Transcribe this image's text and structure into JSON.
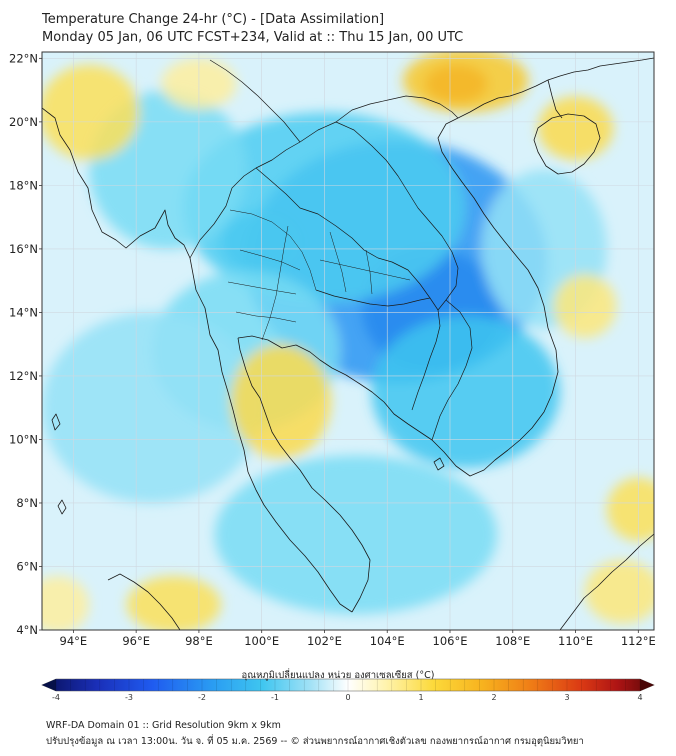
{
  "title": {
    "line1": "Temperature Change 24-hr (°C) - [Data Assimilation]",
    "line2": "Monday 05 Jan, 06 UTC FCST+234, Valid at :: Thu 15 Jan, 00 UTC"
  },
  "map": {
    "lon_range": [
      93.0,
      112.5
    ],
    "lat_range": [
      4.0,
      22.2
    ],
    "lat_ticks": [
      {
        "value": 22,
        "label": "22°N"
      },
      {
        "value": 20,
        "label": "20°N"
      },
      {
        "value": 18,
        "label": "18°N"
      },
      {
        "value": 16,
        "label": "16°N"
      },
      {
        "value": 14,
        "label": "14°N"
      },
      {
        "value": 12,
        "label": "12°N"
      },
      {
        "value": 10,
        "label": "10°N"
      },
      {
        "value": 8,
        "label": "8°N"
      },
      {
        "value": 6,
        "label": "6°N"
      },
      {
        "value": 4,
        "label": "4°N"
      }
    ],
    "lon_ticks": [
      {
        "value": 94,
        "label": "94°E"
      },
      {
        "value": 96,
        "label": "96°E"
      },
      {
        "value": 98,
        "label": "98°E"
      },
      {
        "value": 100,
        "label": "100°E"
      },
      {
        "value": 102,
        "label": "102°E"
      },
      {
        "value": 104,
        "label": "104°E"
      },
      {
        "value": 106,
        "label": "106°E"
      },
      {
        "value": 108,
        "label": "108°E"
      },
      {
        "value": 110,
        "label": "110°E"
      },
      {
        "value": 112,
        "label": "112°E"
      }
    ],
    "field_blobs": [
      {
        "lon": 105.4,
        "lat": 14.1,
        "rlon": 2.2,
        "rlat": 1.9,
        "value": -2.4
      },
      {
        "lon": 104.3,
        "lat": 15.6,
        "rlon": 4.8,
        "rlat": 3.8,
        "value": -1.3
      },
      {
        "lon": 100.0,
        "lat": 16.2,
        "rlon": 1.3,
        "rlat": 1.0,
        "value": -1.0
      },
      {
        "lon": 102.0,
        "lat": 17.3,
        "rlon": 4.5,
        "rlat": 3.0,
        "value": -0.7
      },
      {
        "lon": 106.5,
        "lat": 11.5,
        "rlon": 3.0,
        "rlat": 2.4,
        "value": -0.8
      },
      {
        "lon": 99.5,
        "lat": 12.8,
        "rlon": 3.0,
        "rlat": 2.5,
        "value": -0.4
      },
      {
        "lon": 103.0,
        "lat": 7.0,
        "rlon": 4.5,
        "rlat": 2.5,
        "value": -0.4
      },
      {
        "lon": 96.5,
        "lat": 11.0,
        "rlon": 3.5,
        "rlat": 3.0,
        "value": -0.3
      },
      {
        "lon": 97.0,
        "lat": 18.5,
        "rlon": 2.5,
        "rlat": 2.5,
        "value": -0.4
      },
      {
        "lon": 109.0,
        "lat": 16.0,
        "rlon": 2.0,
        "rlat": 2.5,
        "value": -0.3
      },
      {
        "lon": 100.6,
        "lat": 11.2,
        "rlon": 1.6,
        "rlat": 1.8,
        "value": 0.6
      },
      {
        "lon": 106.2,
        "lat": 21.2,
        "rlon": 1.0,
        "rlat": 0.6,
        "value": 2.6
      },
      {
        "lon": 106.5,
        "lat": 21.3,
        "rlon": 2.0,
        "rlat": 1.0,
        "value": 0.9
      },
      {
        "lon": 110.0,
        "lat": 19.8,
        "rlon": 1.2,
        "rlat": 1.0,
        "value": 0.6
      },
      {
        "lon": 94.5,
        "lat": 20.3,
        "rlon": 1.6,
        "rlat": 1.5,
        "value": 0.5
      },
      {
        "lon": 98.0,
        "lat": 21.2,
        "rlon": 1.2,
        "rlat": 0.8,
        "value": 0.3
      },
      {
        "lon": 110.3,
        "lat": 14.2,
        "rlon": 1.0,
        "rlat": 1.0,
        "value": 0.4
      },
      {
        "lon": 112.0,
        "lat": 7.8,
        "rlon": 1.0,
        "rlat": 1.0,
        "value": 0.5
      },
      {
        "lon": 97.2,
        "lat": 4.8,
        "rlon": 1.5,
        "rlat": 0.9,
        "value": 0.5
      },
      {
        "lon": 93.5,
        "lat": 4.8,
        "rlon": 1.0,
        "rlat": 0.9,
        "value": 0.3
      },
      {
        "lon": 111.5,
        "lat": 5.2,
        "rlon": 1.2,
        "rlat": 1.0,
        "value": 0.4
      }
    ]
  },
  "colorbar": {
    "label": "อุณหภูมิเปลี่ยนแปลง หน่วย องศาเซลเซียส (°C)",
    "min": -4,
    "max": 4,
    "tick_labels": [
      "-4",
      "-3",
      "-2",
      "-1",
      "0",
      "1",
      "2",
      "3",
      "4"
    ]
  },
  "footer": {
    "line1": "WRF-DA Domain 01 :: Grid Resolution 9km x 9km",
    "line2": "ปรับปรุงข้อมูล ณ เวลา 13:00น. วัน จ. ที่ 05 ม.ค. 2569 -- © ส่วนพยากรณ์อากาศเชิงตัวเลข กองพยากรณ์อากาศ กรมอุตุนิยมวิทยา"
  },
  "colors": {
    "land_outline": "#1a1a1a",
    "grid": "#cfd8e0"
  }
}
